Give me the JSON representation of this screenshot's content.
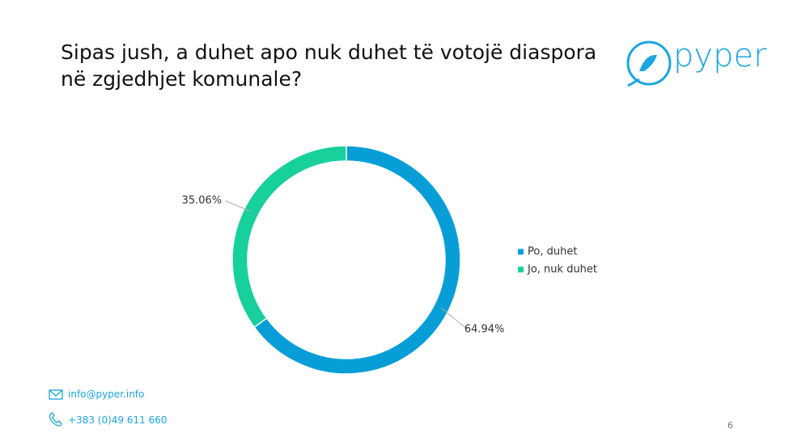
{
  "chart_data": {
    "type": "donut",
    "title": "Sipas jush, a duhet apo nuk duhet të votojë diaspora në zgjedhjet komunale?",
    "categories": [
      "Po, duhet",
      "Jo, nuk duhet"
    ],
    "values": [
      64.94,
      35.06
    ],
    "value_labels": [
      "64.94%",
      "35.06%"
    ],
    "colors": [
      "#079ed8",
      "#17d09c"
    ],
    "legend": "right"
  },
  "logo": "pyper",
  "footer": {
    "email": "info@pyper.info",
    "phone": "+383 (0)49 611 660",
    "page": "6"
  }
}
